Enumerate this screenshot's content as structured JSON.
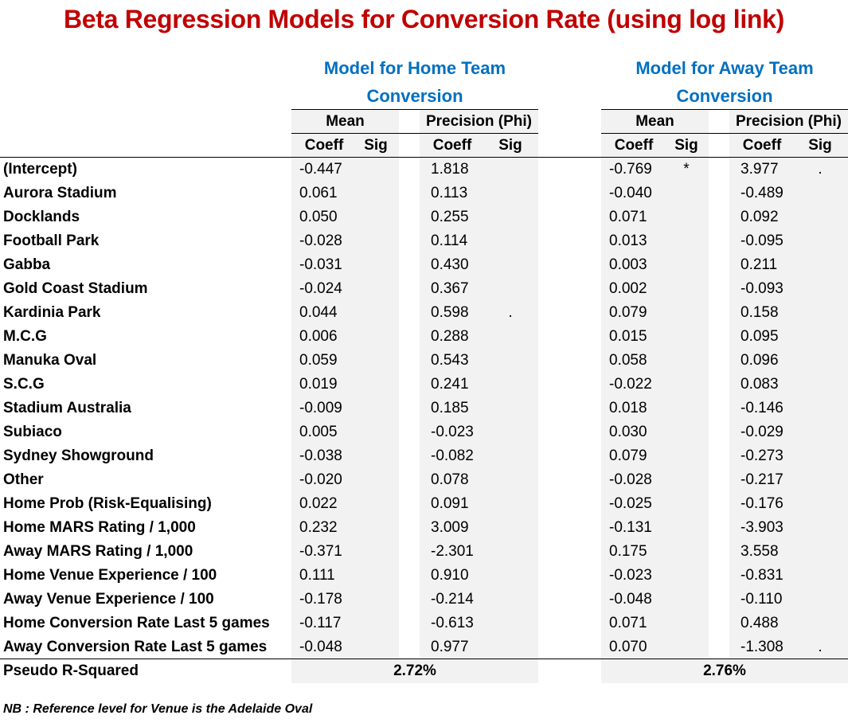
{
  "title": "Beta Regression Models for Conversion Rate (using log link)",
  "models": [
    {
      "heading_line1": "Model for Home Team",
      "heading_line2": "Conversion",
      "mean_label": "Mean",
      "precision_label": "Precision (Phi)",
      "coeff_label": "Coeff",
      "sig_label": "Sig",
      "pseudo_r2": "2.72%"
    },
    {
      "heading_line1": "Model for Away Team",
      "heading_line2": "Conversion",
      "mean_label": "Mean",
      "precision_label": "Precision (Phi)",
      "coeff_label": "Coeff",
      "sig_label": "Sig",
      "pseudo_r2": "2.76%"
    }
  ],
  "pseudo_r2_label": "Pseudo R-Squared",
  "rows": [
    {
      "label": "(Intercept)",
      "home_mean": "-0.447",
      "home_mean_sig": "",
      "home_prec": "1.818",
      "home_prec_sig": "",
      "away_mean": "-0.769",
      "away_mean_sig": "*",
      "away_prec": "3.977",
      "away_prec_sig": "."
    },
    {
      "label": "Aurora Stadium",
      "home_mean": "0.061",
      "home_mean_sig": "",
      "home_prec": "0.113",
      "home_prec_sig": "",
      "away_mean": "-0.040",
      "away_mean_sig": "",
      "away_prec": "-0.489",
      "away_prec_sig": ""
    },
    {
      "label": "Docklands",
      "home_mean": "0.050",
      "home_mean_sig": "",
      "home_prec": "0.255",
      "home_prec_sig": "",
      "away_mean": "0.071",
      "away_mean_sig": "",
      "away_prec": "0.092",
      "away_prec_sig": ""
    },
    {
      "label": "Football Park",
      "home_mean": "-0.028",
      "home_mean_sig": "",
      "home_prec": "0.114",
      "home_prec_sig": "",
      "away_mean": "0.013",
      "away_mean_sig": "",
      "away_prec": "-0.095",
      "away_prec_sig": ""
    },
    {
      "label": "Gabba",
      "home_mean": "-0.031",
      "home_mean_sig": "",
      "home_prec": "0.430",
      "home_prec_sig": "",
      "away_mean": "0.003",
      "away_mean_sig": "",
      "away_prec": "0.211",
      "away_prec_sig": ""
    },
    {
      "label": "Gold Coast Stadium",
      "home_mean": "-0.024",
      "home_mean_sig": "",
      "home_prec": "0.367",
      "home_prec_sig": "",
      "away_mean": "0.002",
      "away_mean_sig": "",
      "away_prec": "-0.093",
      "away_prec_sig": ""
    },
    {
      "label": "Kardinia Park",
      "home_mean": "0.044",
      "home_mean_sig": "",
      "home_prec": "0.598",
      "home_prec_sig": ".",
      "away_mean": "0.079",
      "away_mean_sig": "",
      "away_prec": "0.158",
      "away_prec_sig": ""
    },
    {
      "label": "M.C.G",
      "home_mean": "0.006",
      "home_mean_sig": "",
      "home_prec": "0.288",
      "home_prec_sig": "",
      "away_mean": "0.015",
      "away_mean_sig": "",
      "away_prec": "0.095",
      "away_prec_sig": ""
    },
    {
      "label": "Manuka Oval",
      "home_mean": "0.059",
      "home_mean_sig": "",
      "home_prec": "0.543",
      "home_prec_sig": "",
      "away_mean": "0.058",
      "away_mean_sig": "",
      "away_prec": "0.096",
      "away_prec_sig": ""
    },
    {
      "label": "S.C.G",
      "home_mean": "0.019",
      "home_mean_sig": "",
      "home_prec": "0.241",
      "home_prec_sig": "",
      "away_mean": "-0.022",
      "away_mean_sig": "",
      "away_prec": "0.083",
      "away_prec_sig": ""
    },
    {
      "label": "Stadium Australia",
      "home_mean": "-0.009",
      "home_mean_sig": "",
      "home_prec": "0.185",
      "home_prec_sig": "",
      "away_mean": "0.018",
      "away_mean_sig": "",
      "away_prec": "-0.146",
      "away_prec_sig": ""
    },
    {
      "label": "Subiaco",
      "home_mean": "0.005",
      "home_mean_sig": "",
      "home_prec": "-0.023",
      "home_prec_sig": "",
      "away_mean": "0.030",
      "away_mean_sig": "",
      "away_prec": "-0.029",
      "away_prec_sig": ""
    },
    {
      "label": "Sydney Showground",
      "home_mean": "-0.038",
      "home_mean_sig": "",
      "home_prec": "-0.082",
      "home_prec_sig": "",
      "away_mean": "0.079",
      "away_mean_sig": "",
      "away_prec": "-0.273",
      "away_prec_sig": ""
    },
    {
      "label": "Other",
      "home_mean": "-0.020",
      "home_mean_sig": "",
      "home_prec": "0.078",
      "home_prec_sig": "",
      "away_mean": "-0.028",
      "away_mean_sig": "",
      "away_prec": "-0.217",
      "away_prec_sig": ""
    },
    {
      "label": "Home Prob (Risk-Equalising)",
      "home_mean": "0.022",
      "home_mean_sig": "",
      "home_prec": "0.091",
      "home_prec_sig": "",
      "away_mean": "-0.025",
      "away_mean_sig": "",
      "away_prec": "-0.176",
      "away_prec_sig": ""
    },
    {
      "label": "Home MARS Rating / 1,000",
      "home_mean": "0.232",
      "home_mean_sig": "",
      "home_prec": "3.009",
      "home_prec_sig": "",
      "away_mean": "-0.131",
      "away_mean_sig": "",
      "away_prec": "-3.903",
      "away_prec_sig": ""
    },
    {
      "label": "Away MARS Rating / 1,000",
      "home_mean": "-0.371",
      "home_mean_sig": "",
      "home_prec": "-2.301",
      "home_prec_sig": "",
      "away_mean": "0.175",
      "away_mean_sig": "",
      "away_prec": "3.558",
      "away_prec_sig": ""
    },
    {
      "label": "Home Venue Experience / 100",
      "home_mean": "0.111",
      "home_mean_sig": "",
      "home_prec": "0.910",
      "home_prec_sig": "",
      "away_mean": "-0.023",
      "away_mean_sig": "",
      "away_prec": "-0.831",
      "away_prec_sig": ""
    },
    {
      "label": "Away Venue Experience / 100",
      "home_mean": "-0.178",
      "home_mean_sig": "",
      "home_prec": "-0.214",
      "home_prec_sig": "",
      "away_mean": "-0.048",
      "away_mean_sig": "",
      "away_prec": "-0.110",
      "away_prec_sig": ""
    },
    {
      "label": "Home Conversion Rate Last 5 games",
      "home_mean": "-0.117",
      "home_mean_sig": "",
      "home_prec": "-0.613",
      "home_prec_sig": "",
      "away_mean": "0.071",
      "away_mean_sig": "",
      "away_prec": "0.488",
      "away_prec_sig": ""
    },
    {
      "label": "Away Conversion Rate Last 5 games",
      "home_mean": "-0.048",
      "home_mean_sig": "",
      "home_prec": "0.977",
      "home_prec_sig": "",
      "away_mean": "0.070",
      "away_mean_sig": "",
      "away_prec": "-1.308",
      "away_prec_sig": "."
    }
  ],
  "note": "NB : Reference level for Venue is the Adelaide Oval",
  "colors": {
    "title": "#c00000",
    "heading": "#0070c0",
    "band": "#f2f2f2"
  }
}
